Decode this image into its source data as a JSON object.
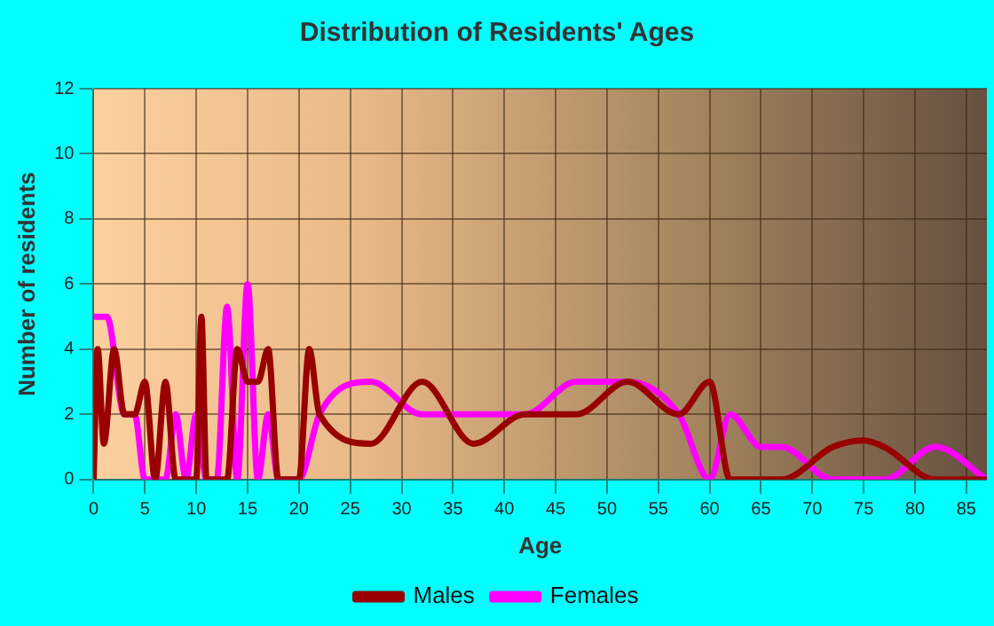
{
  "chart_data": {
    "type": "line",
    "title": "Distribution of Residents' Ages",
    "xlabel": "Age",
    "ylabel": "Number of residents",
    "xlim": [
      0,
      87
    ],
    "xticks": [
      0,
      5,
      10,
      15,
      20,
      25,
      30,
      35,
      40,
      45,
      50,
      55,
      60,
      65,
      70,
      75,
      80,
      85
    ],
    "ylim": [
      0,
      12
    ],
    "yticks": [
      0,
      2,
      4,
      6,
      8,
      10,
      12
    ],
    "grid": true,
    "legend": "bottom",
    "marker": "none",
    "line_style": "solid",
    "series": [
      {
        "name": "Males",
        "color": "#990000",
        "x": [
          0,
          0.4,
          1,
          2,
          3,
          4,
          5,
          6,
          7,
          8,
          9,
          10,
          10.5,
          11,
          12,
          13,
          14,
          15,
          16,
          17,
          18,
          19,
          20,
          21,
          22,
          27,
          32,
          37,
          42,
          47,
          52,
          57,
          60,
          62,
          67,
          72,
          75,
          77,
          82,
          87
        ],
        "values": [
          0,
          4,
          1.1,
          4,
          2,
          2,
          3,
          0,
          3,
          0,
          0,
          0,
          5,
          0,
          0,
          0,
          4,
          3,
          3,
          4,
          0,
          0,
          0,
          4,
          2,
          1.1,
          3,
          1.1,
          2,
          2,
          3,
          2,
          3,
          0,
          0,
          1,
          1.2,
          1,
          0,
          0
        ]
      },
      {
        "name": "Females",
        "color": "#ff00ff",
        "x": [
          0,
          1.3,
          3,
          4,
          5,
          6,
          7,
          8,
          9,
          10,
          11,
          12,
          13,
          14,
          15,
          16,
          17,
          18,
          19,
          20,
          22,
          27,
          32,
          37,
          42,
          47,
          52,
          57,
          60,
          62,
          65,
          67,
          72,
          77,
          82,
          87
        ],
        "values": [
          5,
          5,
          2,
          2,
          0,
          0,
          0,
          2,
          0,
          2,
          0,
          0,
          5.3,
          0,
          6,
          0,
          2,
          0,
          0,
          0,
          2,
          3,
          2,
          2,
          2,
          3,
          3,
          2,
          0,
          2,
          1,
          1,
          0,
          0,
          1,
          0
        ]
      }
    ]
  }
}
